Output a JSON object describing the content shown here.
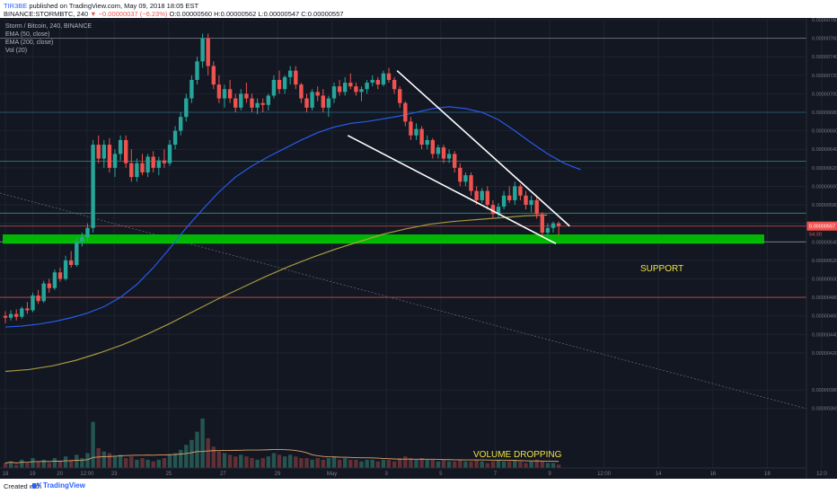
{
  "header": {
    "author": "TIR3BE",
    "published": "published on TradingView.com, May 09, 2018 18:05 EST",
    "symbol": "BINANCE:STORMBTC, 240",
    "change": "▼ −0.00000037 (−6.23%)",
    "ohlc": "O:0.00000560 H:0.00000562 L:0.00000547 C:0.00000557"
  },
  "legend": {
    "title": "Storm / Bitcoin, 240, BINANCE",
    "ema50": "EMA (50, close)",
    "ema200": "EMA (200, close)",
    "vol": "Vol (20)"
  },
  "footer": {
    "created": "Created with",
    "brand": "TradingView"
  },
  "annotations": {
    "support": "SUPPORT",
    "volume": "VOLUME DROPPING"
  },
  "colors": {
    "background": "#131722",
    "up": "#26a69a",
    "down": "#ef5350",
    "ema50": "#2962ff",
    "ema200": "#b5a642",
    "support_zone": "#00c800",
    "annotation": "#f0e442",
    "trendline": "#ffffff"
  },
  "chart_data": {
    "type": "candlestick",
    "symbol": "STORMBTC",
    "interval": "240",
    "y_range": [
      3.5e-06,
      7.8e-06
    ],
    "price_ticks": [
      "0.00000780",
      "0.00000760",
      "0.00000740",
      "0.00000720",
      "0.00000700",
      "0.00000680",
      "0.00000660",
      "0.00000640",
      "0.00000620",
      "0.00000600",
      "0.00000580",
      "0.00000560",
      "0.00000540",
      "0.00000520",
      "0.00000500",
      "0.00000480",
      "0.00000460",
      "0.00000440",
      "0.00000420",
      "0.00000380",
      "0.00000360"
    ],
    "time_ticks": [
      {
        "label": "18",
        "x": 0.0
      },
      {
        "label": "19",
        "x": 6.0
      },
      {
        "label": "20",
        "x": 12.0
      },
      {
        "label": "12:00",
        "x": 18.0
      },
      {
        "label": "23",
        "x": 24.0
      },
      {
        "label": "25",
        "x": 36.0
      },
      {
        "label": "27",
        "x": 48.0
      },
      {
        "label": "29",
        "x": 60.0
      },
      {
        "label": "May",
        "x": 72.0
      },
      {
        "label": "3",
        "x": 84.0
      },
      {
        "label": "5",
        "x": 96.0
      },
      {
        "label": "7",
        "x": 108.0
      },
      {
        "label": "9",
        "x": 120.0
      },
      {
        "label": "12:00",
        "x": 132.0
      },
      {
        "label": "14",
        "x": 144.0
      },
      {
        "label": "16",
        "x": 156.0
      },
      {
        "label": "18",
        "x": 168.0
      },
      {
        "label": "12:0",
        "x": 180.0
      }
    ],
    "last_price": "0.00000557",
    "last_price_sub": "54:30",
    "candles_ohlc": [
      [
        4.6e-06,
        4.65e-06,
        4.52e-06,
        4.58e-06
      ],
      [
        4.58e-06,
        4.66e-06,
        4.55e-06,
        4.62e-06
      ],
      [
        4.62e-06,
        4.67e-06,
        4.55e-06,
        4.59e-06
      ],
      [
        4.59e-06,
        4.7e-06,
        4.57e-06,
        4.68e-06
      ],
      [
        4.68e-06,
        4.75e-06,
        4.62e-06,
        4.66e-06
      ],
      [
        4.66e-06,
        4.85e-06,
        4.64e-06,
        4.82e-06
      ],
      [
        4.82e-06,
        4.88e-06,
        4.73e-06,
        4.76e-06
      ],
      [
        4.76e-06,
        4.98e-06,
        4.74e-06,
        4.95e-06
      ],
      [
        4.95e-06,
        5e-06,
        4.85e-06,
        4.9e-06
      ],
      [
        4.9e-06,
        5.1e-06,
        4.88e-06,
        5.07e-06
      ],
      [
        5.07e-06,
        5.12e-06,
        4.97e-06,
        5e-06
      ],
      [
        5e-06,
        5.25e-06,
        4.98e-06,
        5.2e-06
      ],
      [
        5.2e-06,
        5.3e-06,
        5.12e-06,
        5.15e-06
      ],
      [
        5.15e-06,
        5.45e-06,
        5.13e-06,
        5.4e-06
      ],
      [
        5.4e-06,
        5.5e-06,
        5.35e-06,
        5.45e-06
      ],
      [
        5.45e-06,
        5.6e-06,
        5.4e-06,
        5.55e-06
      ],
      [
        5.55e-06,
        6.5e-06,
        5.5e-06,
        6.45e-06
      ],
      [
        6.45e-06,
        6.55e-06,
        6.25e-06,
        6.3e-06
      ],
      [
        6.3e-06,
        6.5e-06,
        6.2e-06,
        6.45e-06
      ],
      [
        6.45e-06,
        6.52e-06,
        6.15e-06,
        6.2e-06
      ],
      [
        6.2e-06,
        6.4e-06,
        6.1e-06,
        6.35e-06
      ],
      [
        6.35e-06,
        6.55e-06,
        6.28e-06,
        6.5e-06
      ],
      [
        6.5e-06,
        6.55e-06,
        6.2e-06,
        6.25e-06
      ],
      [
        6.25e-06,
        6.4e-06,
        6.05e-06,
        6.1e-06
      ],
      [
        6.1e-06,
        6.3e-06,
        6.05e-06,
        6.25e-06
      ],
      [
        6.25e-06,
        6.35e-06,
        6.12e-06,
        6.15e-06
      ],
      [
        6.15e-06,
        6.35e-06,
        6.1e-06,
        6.32e-06
      ],
      [
        6.32e-06,
        6.38e-06,
        6.15e-06,
        6.2e-06
      ],
      [
        6.2e-06,
        6.32e-06,
        6.12e-06,
        6.28e-06
      ],
      [
        6.28e-06,
        6.4e-06,
        6.2e-06,
        6.25e-06
      ],
      [
        6.25e-06,
        6.5e-06,
        6.22e-06,
        6.45e-06
      ],
      [
        6.45e-06,
        6.65e-06,
        6.4e-06,
        6.6e-06
      ],
      [
        6.6e-06,
        6.8e-06,
        6.55e-06,
        6.75e-06
      ],
      [
        6.75e-06,
        7e-06,
        6.7e-06,
        6.95e-06
      ],
      [
        6.95e-06,
        7.2e-06,
        6.9e-06,
        7.15e-06
      ],
      [
        7.15e-06,
        7.4e-06,
        7.1e-06,
        7.35e-06
      ],
      [
        7.35e-06,
        7.65e-06,
        7.28e-06,
        7.6e-06
      ],
      [
        7.6e-06,
        7.65e-06,
        7.2e-06,
        7.3e-06
      ],
      [
        7.3e-06,
        7.35e-06,
        7.05e-06,
        7.1e-06
      ],
      [
        7.1e-06,
        7.2e-06,
        6.9e-06,
        6.95e-06
      ],
      [
        6.95e-06,
        7.1e-06,
        6.85e-06,
        7.05e-06
      ],
      [
        7.05e-06,
        7.15e-06,
        6.9e-06,
        6.95e-06
      ],
      [
        6.95e-06,
        7e-06,
        6.8e-06,
        6.85e-06
      ],
      [
        6.85e-06,
        7.05e-06,
        6.82e-06,
        7e-06
      ],
      [
        7e-06,
        7.12e-06,
        6.9e-06,
        6.95e-06
      ],
      [
        6.95e-06,
        7e-06,
        6.8e-06,
        6.85e-06
      ],
      [
        6.85e-06,
        6.95e-06,
        6.78e-06,
        6.9e-06
      ],
      [
        6.9e-06,
        6.95e-06,
        6.8e-06,
        6.88e-06
      ],
      [
        6.88e-06,
        7e-06,
        6.82e-06,
        6.98e-06
      ],
      [
        6.98e-06,
        7.2e-06,
        6.95e-06,
        7.15e-06
      ],
      [
        7.15e-06,
        7.25e-06,
        7e-06,
        7.05e-06
      ],
      [
        7.05e-06,
        7.2e-06,
        7e-06,
        7.18e-06
      ],
      [
        7.18e-06,
        7.3e-06,
        7.1e-06,
        7.25e-06
      ],
      [
        7.25e-06,
        7.3e-06,
        7.05e-06,
        7.1e-06
      ],
      [
        7.1e-06,
        7.12e-06,
        6.9e-06,
        6.95e-06
      ],
      [
        6.95e-06,
        7e-06,
        6.8e-06,
        6.85e-06
      ],
      [
        6.85e-06,
        7.05e-06,
        6.82e-06,
        7.02e-06
      ],
      [
        7.02e-06,
        7.08e-06,
        6.92e-06,
        6.98e-06
      ],
      [
        6.98e-06,
        7.05e-06,
        6.8e-06,
        6.85e-06
      ],
      [
        6.85e-06,
        6.98e-06,
        6.75e-06,
        6.95e-06
      ],
      [
        6.95e-06,
        7.12e-06,
        6.9e-06,
        7.08e-06
      ],
      [
        7.08e-06,
        7.15e-06,
        6.98e-06,
        7.02e-06
      ],
      [
        7.02e-06,
        7.18e-06,
        6.98e-06,
        7.12e-06
      ],
      [
        7.12e-06,
        7.22e-06,
        7.05e-06,
        7.08e-06
      ],
      [
        7.08e-06,
        7.12e-06,
        6.98e-06,
        7.02e-06
      ],
      [
        7.02e-06,
        7.08e-06,
        6.92e-06,
        7.05e-06
      ],
      [
        7.05e-06,
        7.15e-06,
        7e-06,
        7.12e-06
      ],
      [
        7.12e-06,
        7.2e-06,
        7.08e-06,
        7.15e-06
      ],
      [
        7.15e-06,
        7.18e-06,
        7.05e-06,
        7.1e-06
      ],
      [
        7.1e-06,
        7.25e-06,
        7.08e-06,
        7.22e-06
      ],
      [
        7.22e-06,
        7.28e-06,
        7.12e-06,
        7.15e-06
      ],
      [
        7.15e-06,
        7.18e-06,
        7e-06,
        7.05e-06
      ],
      [
        7.05e-06,
        7.08e-06,
        6.85e-06,
        6.9e-06
      ],
      [
        6.9e-06,
        6.92e-06,
        6.65e-06,
        6.7e-06
      ],
      [
        6.7e-06,
        6.75e-06,
        6.5e-06,
        6.55e-06
      ],
      [
        6.55e-06,
        6.68e-06,
        6.5e-06,
        6.62e-06
      ],
      [
        6.62e-06,
        6.65e-06,
        6.4e-06,
        6.45e-06
      ],
      [
        6.45e-06,
        6.55e-06,
        6.4e-06,
        6.5e-06
      ],
      [
        6.5e-06,
        6.52e-06,
        6.3e-06,
        6.35e-06
      ],
      [
        6.35e-06,
        6.45e-06,
        6.3e-06,
        6.42e-06
      ],
      [
        6.42e-06,
        6.45e-06,
        6.25e-06,
        6.3e-06
      ],
      [
        6.3e-06,
        6.4e-06,
        6.25e-06,
        6.35e-06
      ],
      [
        6.35e-06,
        6.38e-06,
        6.15e-06,
        6.2e-06
      ],
      [
        6.2e-06,
        6.25e-06,
        6e-06,
        6.05e-06
      ],
      [
        6.05e-06,
        6.15e-06,
        6e-06,
        6.12e-06
      ],
      [
        6.12e-06,
        6.15e-06,
        5.9e-06,
        5.95e-06
      ],
      [
        5.95e-06,
        6e-06,
        5.8e-06,
        5.85e-06
      ],
      [
        5.85e-06,
        5.98e-06,
        5.82e-06,
        5.95e-06
      ],
      [
        5.95e-06,
        6e-06,
        5.75e-06,
        5.8e-06
      ],
      [
        5.8e-06,
        5.85e-06,
        5.65e-06,
        5.7e-06
      ],
      [
        5.7e-06,
        5.82e-06,
        5.65e-06,
        5.78e-06
      ],
      [
        5.78e-06,
        5.95e-06,
        5.75e-06,
        5.9e-06
      ],
      [
        5.9e-06,
        6e-06,
        5.82e-06,
        5.85e-06
      ],
      [
        5.85e-06,
        6.05e-06,
        5.8e-06,
        6e-06
      ],
      [
        6e-06,
        6.02e-06,
        5.85e-06,
        5.9e-06
      ],
      [
        5.9e-06,
        5.95e-06,
        5.75e-06,
        5.8e-06
      ],
      [
        5.8e-06,
        5.9e-06,
        5.72e-06,
        5.85e-06
      ],
      [
        5.85e-06,
        5.9e-06,
        5.65e-06,
        5.7e-06
      ],
      [
        5.7e-06,
        5.72e-06,
        5.45e-06,
        5.5e-06
      ],
      [
        5.5e-06,
        5.6e-06,
        5.46e-06,
        5.55e-06
      ],
      [
        5.55e-06,
        5.62e-06,
        5.5e-06,
        5.6e-06
      ],
      [
        5.6e-06,
        5.62e-06,
        5.47e-06,
        5.57e-06
      ]
    ],
    "volumes": [
      3,
      4,
      2,
      5,
      3,
      6,
      4,
      5,
      3,
      6,
      4,
      7,
      5,
      8,
      6,
      9,
      28,
      12,
      10,
      9,
      7,
      8,
      6,
      7,
      5,
      6,
      5,
      4,
      5,
      6,
      8,
      9,
      11,
      14,
      17,
      22,
      30,
      18,
      13,
      10,
      9,
      8,
      7,
      8,
      7,
      6,
      5,
      6,
      7,
      9,
      8,
      7,
      8,
      7,
      6,
      6,
      5,
      6,
      5,
      6,
      7,
      5,
      6,
      5,
      5,
      4,
      5,
      5,
      4,
      5,
      5,
      4,
      6,
      7,
      6,
      5,
      6,
      5,
      5,
      4,
      5,
      4,
      4,
      5,
      4,
      4,
      5,
      4,
      3,
      4,
      5,
      4,
      4,
      5,
      4,
      3,
      4,
      5,
      4,
      3,
      3,
      2
    ],
    "ema50": [
      4.48e-06,
      4.49e-06,
      4.51e-06,
      4.54e-06,
      4.58e-06,
      4.63e-06,
      4.7e-06,
      4.8e-06,
      4.94e-06,
      5.12e-06,
      5.33e-06,
      5.55e-06,
      5.75e-06,
      5.94e-06,
      6.1e-06,
      6.22e-06,
      6.32e-06,
      6.41e-06,
      6.5e-06,
      6.58e-06,
      6.64e-06,
      6.68e-06,
      6.7e-06,
      6.73e-06,
      6.76e-06,
      6.8e-06,
      6.84e-06,
      6.86e-06,
      6.84e-06,
      6.8e-06,
      6.72e-06,
      6.6e-06,
      6.47e-06,
      6.35e-06,
      6.25e-06,
      6.18e-06
    ],
    "ema200": [
      4e-06,
      4.02e-06,
      4.06e-06,
      4.12e-06,
      4.2e-06,
      4.29e-06,
      4.4e-06,
      4.52e-06,
      4.65e-06,
      4.78e-06,
      4.9e-06,
      5.02e-06,
      5.13e-06,
      5.23e-06,
      5.32e-06,
      5.4e-06,
      5.48e-06,
      5.54e-06,
      5.59e-06,
      5.62e-06,
      5.64e-06,
      5.66e-06,
      5.68e-06,
      5.69e-06
    ],
    "support_zone": [
      5.38e-06,
      5.48e-06
    ],
    "horizontal_levels": [
      7.6e-06,
      6.8e-06,
      6.27e-06,
      5.71e-06,
      5.57e-06,
      5.4e-06,
      4.8e-06
    ],
    "trendlines": [
      {
        "name": "upper",
        "from": [
          7.25e-06
        ],
        "to": [
          5.57e-06
        ]
      },
      {
        "name": "lower",
        "from": [
          6.55e-06
        ],
        "to": [
          5.38e-06
        ]
      }
    ]
  }
}
